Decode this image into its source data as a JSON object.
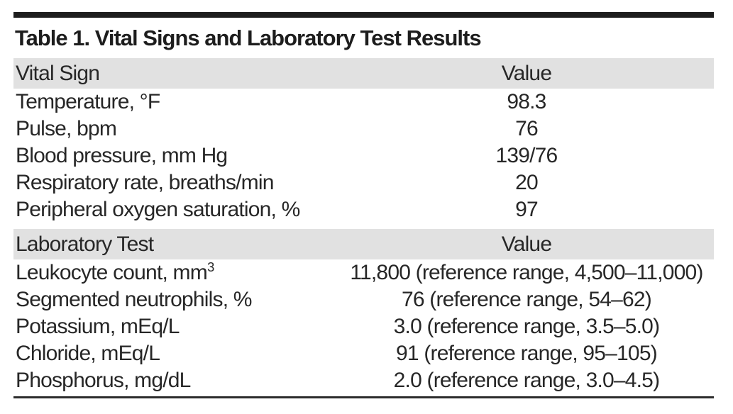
{
  "table": {
    "title": "Table 1. Vital Signs and Laboratory Test Results",
    "colors": {
      "header_row_bg": "#e1e1e1",
      "top_rule": "#1d1d1d",
      "bottom_rule": "#2c2c2c",
      "text": "#272727"
    },
    "sections": [
      {
        "header": {
          "col1": "Vital Sign",
          "col2": "Value"
        },
        "rows": [
          {
            "label": "Temperature, °F",
            "value": "98.3"
          },
          {
            "label": "Pulse, bpm",
            "value": "76"
          },
          {
            "label": "Blood pressure, mm Hg",
            "value": "139/76"
          },
          {
            "label": "Respiratory rate, breaths/min",
            "value": "20"
          },
          {
            "label": "Peripheral oxygen saturation, %",
            "value": "97"
          }
        ]
      },
      {
        "header": {
          "col1": "Laboratory Test",
          "col2": "Value"
        },
        "rows": [
          {
            "label": "Leukocyte count, mm",
            "label_sup": "3",
            "value": "11,800 (reference range, 4,500–11,000)"
          },
          {
            "label": "Segmented neutrophils, %",
            "value": "76 (reference range, 54–62)"
          },
          {
            "label": "Potassium, mEq/L",
            "value": "3.0 (reference range, 3.5–5.0)"
          },
          {
            "label": "Chloride, mEq/L",
            "value": "91 (reference range, 95–105)"
          },
          {
            "label": "Phosphorus, mg/dL",
            "value": "2.0 (reference range, 3.0–4.5)"
          }
        ]
      }
    ]
  }
}
